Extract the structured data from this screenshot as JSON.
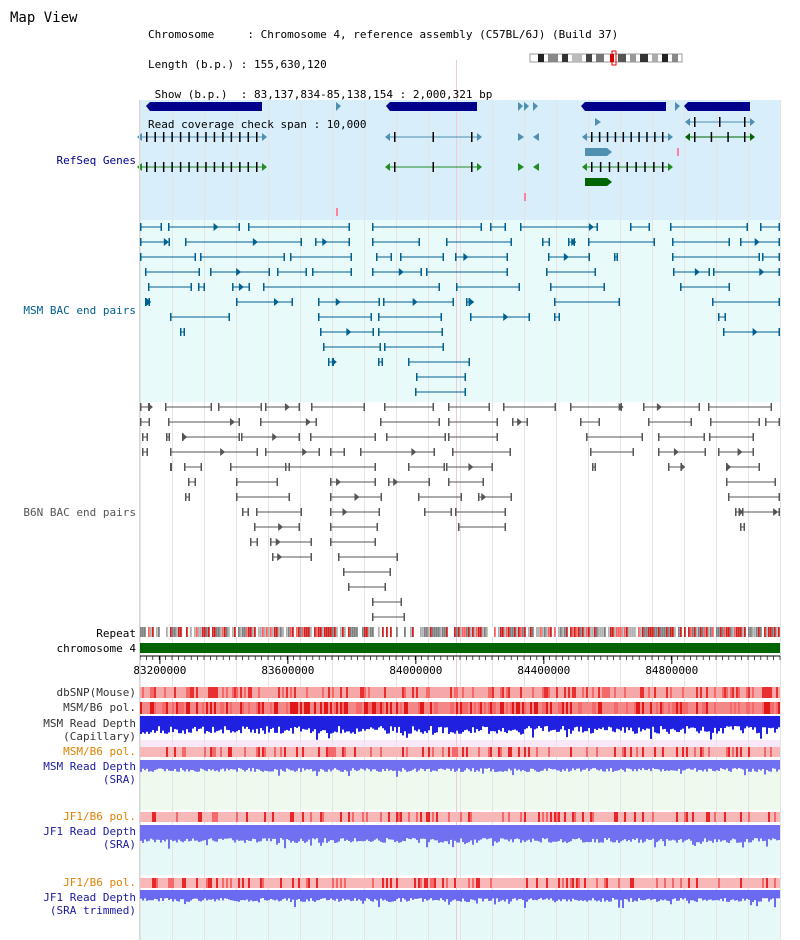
{
  "window": {
    "title": "Map View"
  },
  "header": {
    "lines": [
      "Chromosome     : Chromosome 4, reference assembly (C57BL/6J) (Build 37)",
      "Length (b.p.) : 155,630,120",
      " Show (b.p.)  : 83,137,834-85,138,154 : 2,000,321 bp",
      "Read coverage check span : 10,000"
    ]
  },
  "tracks": {
    "refseq": {
      "label": "RefSeq Genes",
      "color": "#00008b"
    },
    "msm_bac": {
      "label": "MSM BAC end pairs",
      "color": "#006090"
    },
    "b6n_bac": {
      "label": "B6N BAC end pairs",
      "color": "#555555"
    },
    "repeat": {
      "label": "Repeat"
    },
    "chromosome": {
      "label": "chromosome 4",
      "color": "#006400"
    },
    "dbsnp": {
      "label": "dbSNP(Mouse)"
    },
    "msm_b6_pol_1": {
      "label": "MSM/B6 pol."
    },
    "msm_read_depth_cap": {
      "label": "MSM Read Depth",
      "sub": "(Capillary)"
    },
    "msm_b6_pol_2": {
      "label": "MSM/B6 pol.",
      "color": "#e08000"
    },
    "msm_read_depth_sra": {
      "label": "MSM Read Depth",
      "sub": "(SRA)"
    },
    "jf1_b6_pol_1": {
      "label": "JF1/B6 pol.",
      "color": "#e08000"
    },
    "jf1_read_depth_sra": {
      "label": "JF1 Read Depth",
      "sub": "(SRA)"
    },
    "jf1_b6_pol_2": {
      "label": "JF1/B6 pol.",
      "color": "#e08000"
    },
    "jf1_read_depth_trim": {
      "label": "JF1 Read Depth",
      "sub": "(SRA trimmed)"
    }
  },
  "ruler": {
    "ticks": [
      "83200000",
      "83600000",
      "84000000",
      "84400000",
      "84800000"
    ],
    "tick_values": [
      83200000,
      83600000,
      84000000,
      84400000,
      84800000
    ]
  },
  "colors": {
    "refseq_bg": "#d8eefa",
    "bac_bg": "#e8fafa",
    "pol_base": "#f4a0a0",
    "depth_blue": "#3030e0",
    "depth_light": "#7878f0"
  }
}
